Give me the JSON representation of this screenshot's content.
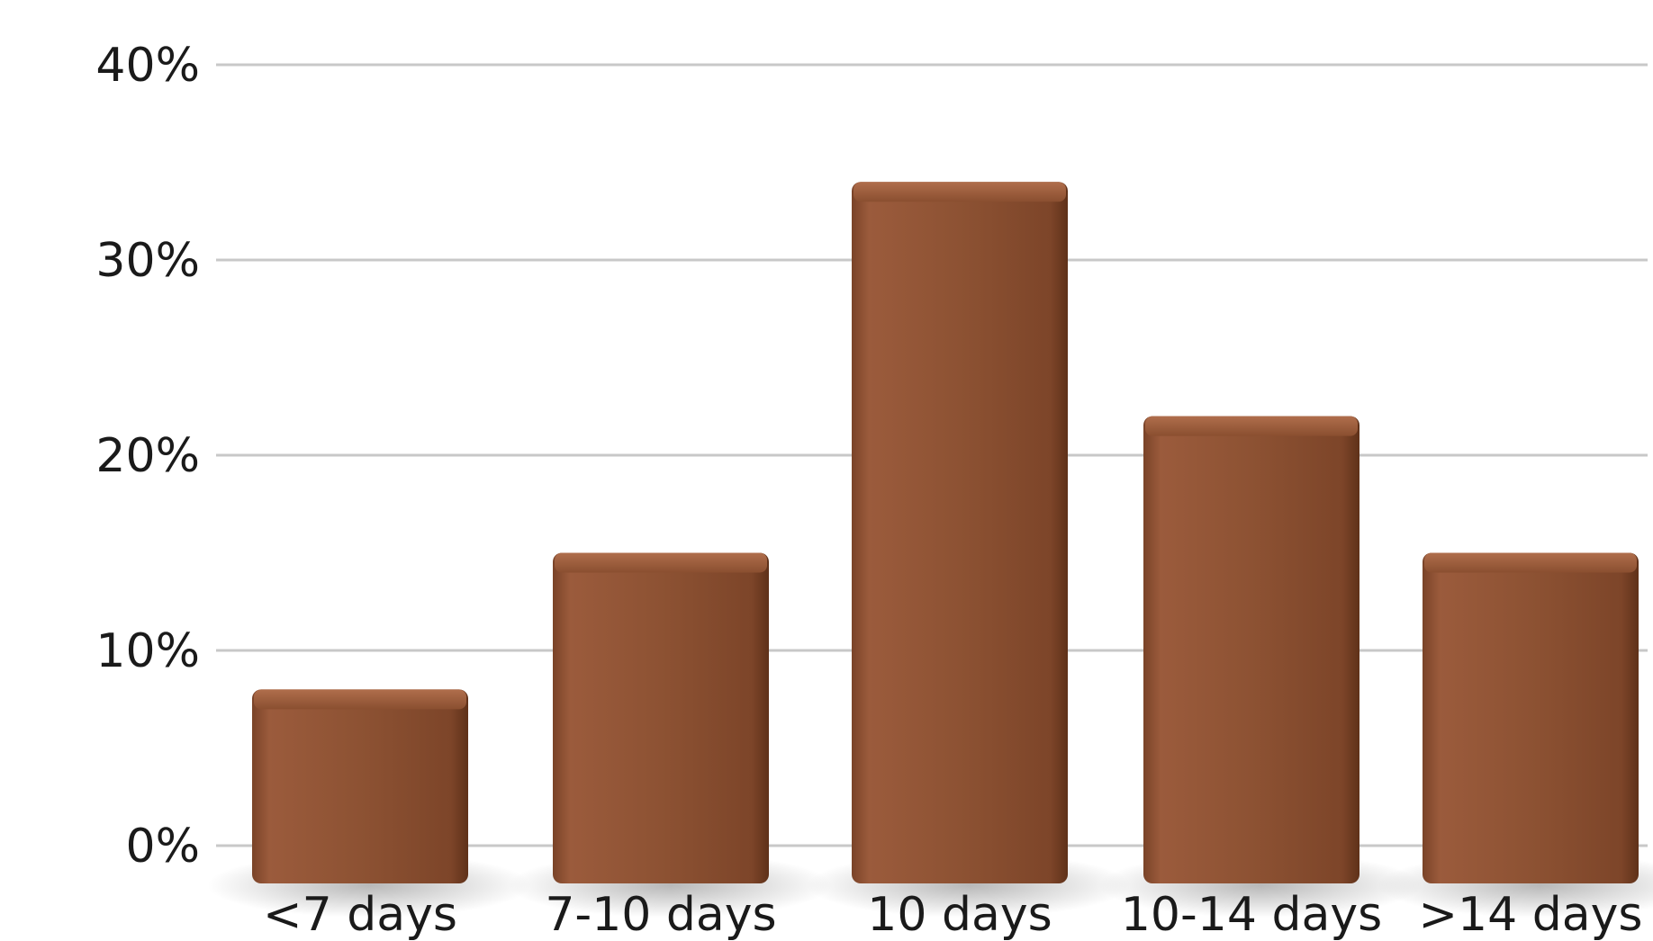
{
  "chart_data": {
    "type": "bar",
    "categories": [
      "<7 days",
      "7-10 days",
      "10 days",
      "10-14 days",
      ">14 days"
    ],
    "values": [
      8,
      15,
      34,
      22,
      15
    ],
    "ylim": [
      0,
      40
    ],
    "yticks": [
      0,
      10,
      20,
      30,
      40
    ],
    "ytick_labels": [
      "0%",
      "10%",
      "20%",
      "30%",
      "40%"
    ],
    "title": "",
    "xlabel": "",
    "ylabel": "",
    "grid": true,
    "bar_color": "#8a4f30"
  }
}
